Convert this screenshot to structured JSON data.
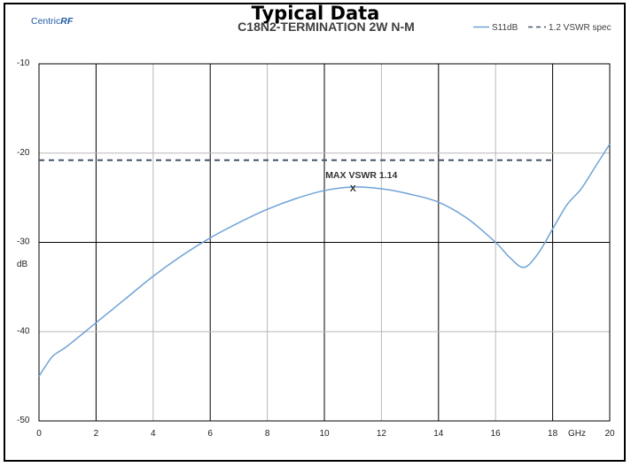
{
  "heading": "Typical Data",
  "logo": {
    "part1": "Centric",
    "part2": "RF",
    "colors": {
      "part1": "#1f5aa6",
      "part2": "#1f5aa6"
    }
  },
  "chart_data": {
    "type": "line",
    "title": "C18N2-TERMINATION 2W N-M",
    "xlabel": "GHz",
    "ylabel": "dB",
    "xlim": [
      0,
      20
    ],
    "ylim": [
      -50,
      -10
    ],
    "x_ticks": [
      0,
      2,
      4,
      6,
      8,
      10,
      12,
      14,
      16,
      18,
      20
    ],
    "y_ticks": [
      -10,
      -20,
      -30,
      -40,
      -50
    ],
    "grid": true,
    "legend_position": "top-right",
    "series": [
      {
        "name": "S11dB",
        "style": "solid",
        "color": "#6fa3d6",
        "x": [
          0,
          0.2,
          0.5,
          1,
          2,
          3,
          4,
          5,
          6,
          7,
          8,
          9,
          10,
          11,
          12,
          13,
          14,
          15,
          16,
          16.5,
          17,
          17.5,
          18,
          18.5,
          19,
          19.5,
          20
        ],
        "y": [
          -45,
          -44,
          -42.7,
          -41.6,
          -39,
          -36.4,
          -33.8,
          -31.5,
          -29.5,
          -27.8,
          -26.3,
          -25.1,
          -24.2,
          -23.8,
          -24,
          -24.6,
          -25.5,
          -27.3,
          -30,
          -31.7,
          -32.8,
          -31.2,
          -28.5,
          -25.8,
          -24,
          -21.5,
          -19
        ]
      },
      {
        "name": "1.2 VSWR spec",
        "style": "dashed",
        "color": "#44546a",
        "x": [
          0,
          18
        ],
        "y": [
          -20.8,
          -20.8
        ]
      }
    ],
    "annotations": [
      {
        "text": "MAX VSWR 1.14",
        "marker": "X",
        "x": 11,
        "y": -23.8
      }
    ]
  }
}
